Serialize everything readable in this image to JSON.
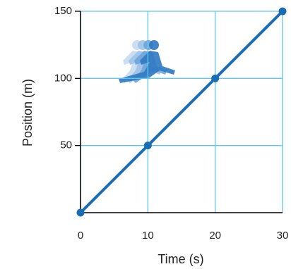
{
  "chart_data": {
    "type": "line",
    "x_label": "Time (s)",
    "y_label": "Position (m)",
    "x": [
      0,
      10,
      20,
      30
    ],
    "values": [
      0,
      50,
      100,
      150
    ],
    "color": "#1b6db3",
    "xlim": [
      0,
      30
    ],
    "xticks": [
      0,
      10,
      20,
      30
    ],
    "ylim": [
      0,
      150
    ],
    "yticks": [
      50,
      100,
      150
    ],
    "grid": true,
    "grid_color": "#5ec6ee"
  }
}
